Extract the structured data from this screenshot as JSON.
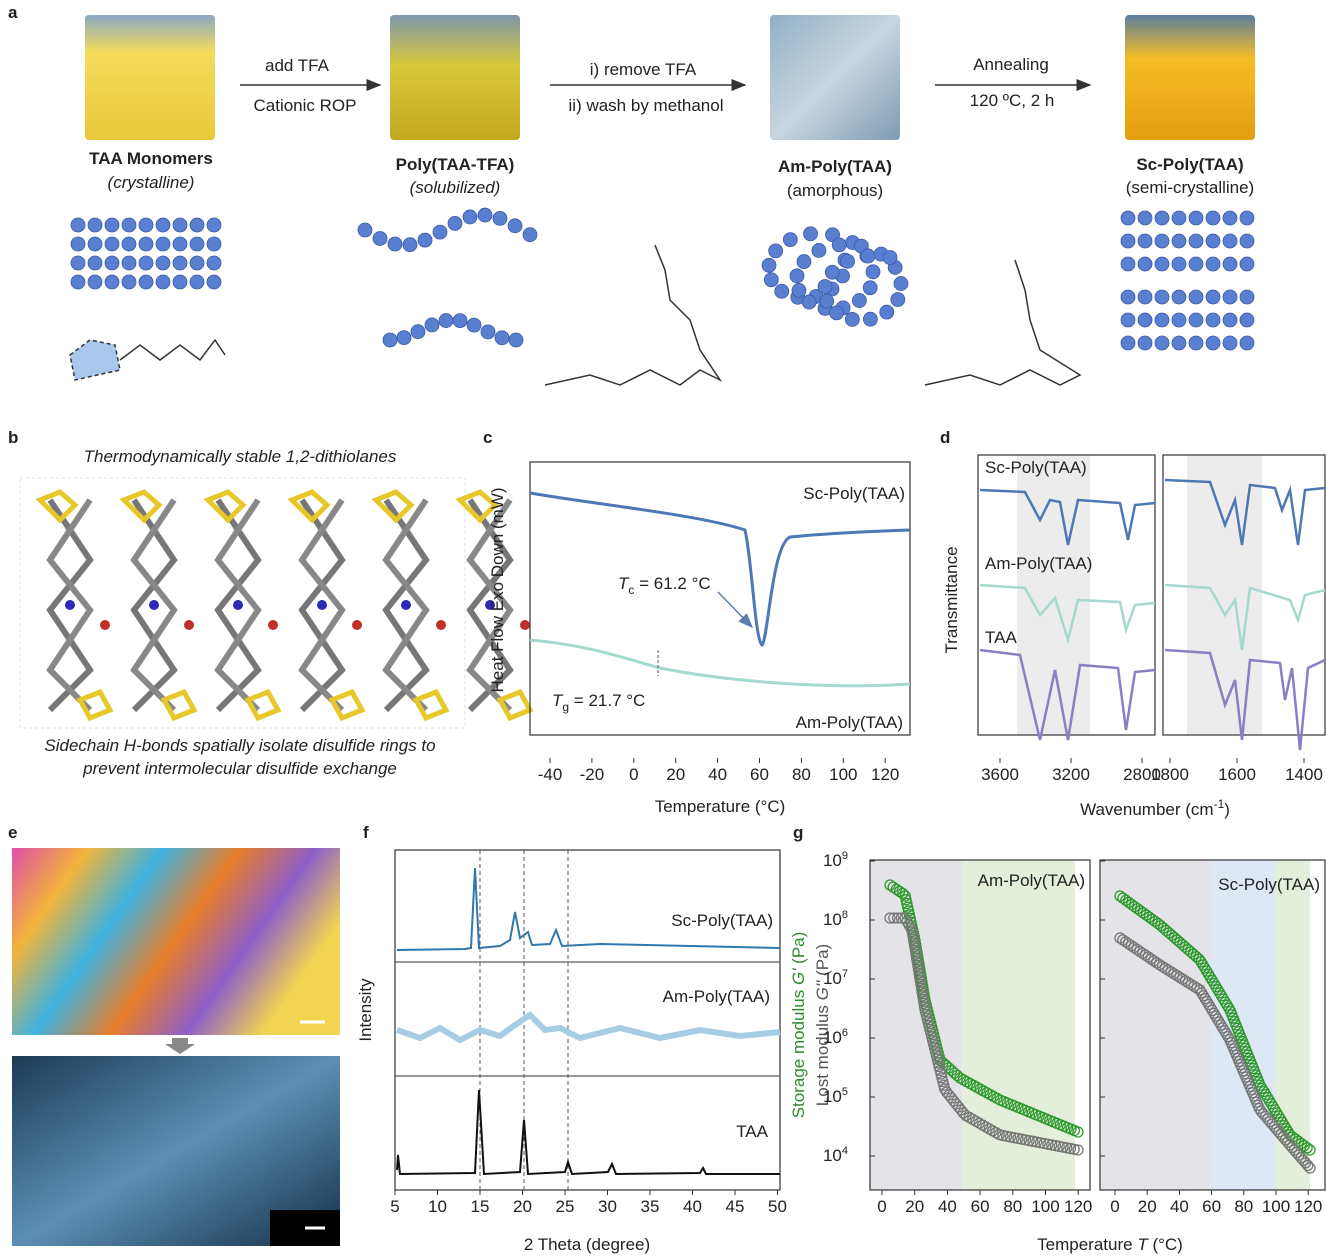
{
  "panel_a": {
    "label": "a",
    "stages": [
      {
        "name": "TAA Monomers",
        "state": "(crystalline)"
      },
      {
        "name": "Poly(TAA-TFA)",
        "state": "(solubilized)"
      },
      {
        "name": "Am-Poly(TAA)",
        "state": "(amorphous)"
      },
      {
        "name": "Sc-Poly(TAA)",
        "state": "(semi-crystalline)"
      }
    ],
    "steps": [
      {
        "top": "add TFA",
        "bottom": "Cationic ROP"
      },
      {
        "top": "i) remove TFA",
        "bottom": "ii) wash by methanol"
      },
      {
        "top": "Annealing",
        "bottom": "120 ºC, 2 h"
      }
    ]
  },
  "panel_b": {
    "label": "b",
    "title": "Thermodynamically stable 1,2-dithiolanes",
    "caption_1": "Sidechain H-bonds spatially isolate disulfide rings to",
    "caption_2": "prevent intermolecular disulfide exchange"
  },
  "panel_c": {
    "label": "c",
    "y_label": "Heat Flow Exo Down (mW)",
    "x_label": "Temperature (°C)",
    "x_ticks": [
      "-40",
      "-20",
      "0",
      "20",
      "40",
      "60",
      "80",
      "100",
      "120"
    ],
    "curve_labels": [
      "Sc-Poly(TAA)",
      "Am-Poly(TAA)"
    ],
    "tc": {
      "symbol": "T",
      "sub": "c",
      "text": " = 61.2 °C"
    },
    "tg": {
      "symbol": "T",
      "sub": "g",
      "text": " = 21.7 °C"
    }
  },
  "panel_d": {
    "label": "d",
    "y_label": "Transmittance",
    "x_label": {
      "text": "Wavenumber (cm",
      "sup": "-1",
      "end": ")"
    },
    "left_ticks": [
      "3600",
      "3200",
      "2800"
    ],
    "right_ticks": [
      "1800",
      "1600",
      "1400"
    ],
    "samples": [
      "Sc-Poly(TAA)",
      "Am-Poly(TAA)",
      "TAA"
    ]
  },
  "panel_e": {
    "label": "e"
  },
  "panel_f": {
    "label": "f",
    "y_label": "Intensity",
    "x_label": "2 Theta (degree)",
    "x_ticks": [
      "5",
      "10",
      "15",
      "20",
      "25",
      "30",
      "35",
      "40",
      "45",
      "50"
    ],
    "samples": [
      "Sc-Poly(TAA)",
      "Am-Poly(TAA)",
      "TAA"
    ]
  },
  "panel_g": {
    "label": "g",
    "y_label": {
      "text": "Storage modulus ",
      "sym": "G'",
      "end": " (Pa)"
    },
    "y2_label": {
      "text": "Lost modulus ",
      "sym": "G''",
      "end": " (Pa)"
    },
    "x_label": {
      "text": "Temperature ",
      "sym": "T",
      "end": " (°C)"
    },
    "y_ticks": {
      "base": "10",
      "exponents": [
        "9",
        "8",
        "7",
        "6",
        "5",
        "4"
      ]
    },
    "x_ticks": [
      "0",
      "20",
      "40",
      "60",
      "80",
      "100",
      "120"
    ],
    "titles": [
      "Am-Poly(TAA)",
      "Sc-Poly(TAA)"
    ]
  }
}
